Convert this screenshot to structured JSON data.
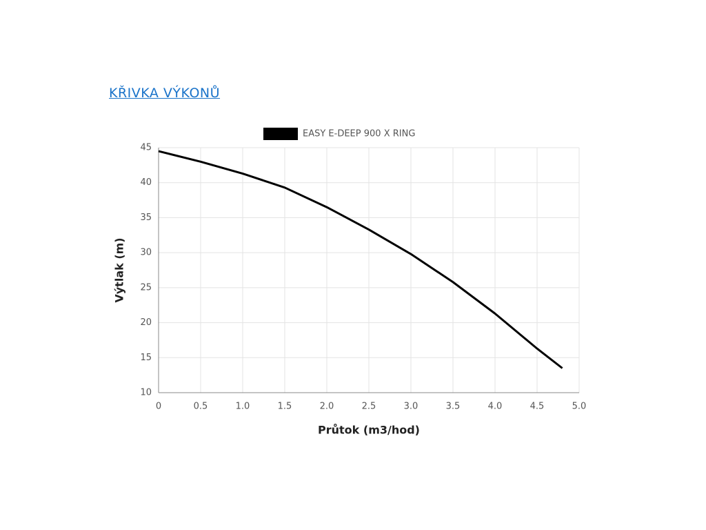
{
  "heading": "KŘIVKA VÝKONŮ",
  "chart_data": {
    "type": "line",
    "x": [
      0,
      0.5,
      1.0,
      1.5,
      2.0,
      2.5,
      3.0,
      3.5,
      4.0,
      4.5,
      4.8
    ],
    "series": [
      {
        "name": "EASY E-DEEP 900 X RING",
        "color": "#000000",
        "values": [
          44.5,
          43.0,
          41.3,
          39.3,
          36.5,
          33.3,
          29.8,
          25.8,
          21.3,
          16.3,
          13.5
        ]
      }
    ],
    "xlabel": "Průtok (m3/hod)",
    "ylabel": "Výtlak (m)",
    "xlim": [
      0,
      5
    ],
    "ylim": [
      10,
      45
    ],
    "xticks": [
      0,
      0.5,
      {
        "value": 1,
        "label": "1.0"
      },
      1.5,
      {
        "value": 2,
        "label": "2.0"
      },
      2.5,
      {
        "value": 3,
        "label": "3.0"
      },
      3.5,
      {
        "value": 4,
        "label": "4.0"
      },
      4.5,
      {
        "value": 5,
        "label": "5.0"
      }
    ],
    "yticks": [
      10,
      15,
      20,
      25,
      30,
      35,
      40,
      45
    ],
    "grid": true,
    "legend": "top"
  }
}
